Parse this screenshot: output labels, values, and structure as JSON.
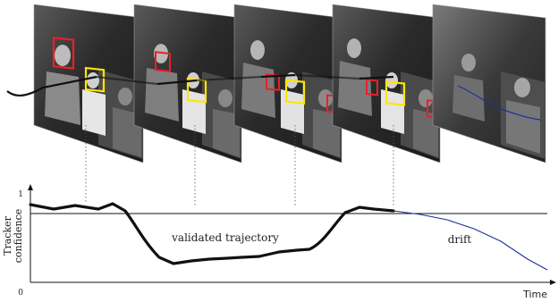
{
  "labels": {
    "y_axis_top": "Tracker",
    "y_axis_bottom": "confidence",
    "y_tick_max": "1",
    "y_tick_min": "0",
    "x_axis": "Time",
    "validated": "validated trajectory",
    "drift": "drift"
  },
  "frames": [
    {
      "id": "frame-1",
      "tone": "#2a2a2a"
    },
    {
      "id": "frame-2",
      "tone": "#2f2f2f"
    },
    {
      "id": "frame-3",
      "tone": "#2c2c2c"
    },
    {
      "id": "frame-4",
      "tone": "#303030"
    },
    {
      "id": "frame-5",
      "tone": "#333333"
    }
  ],
  "colors": {
    "validated_box": "#ffe600",
    "detection_box": "#e8202a",
    "drift_line": "#1f2f9a",
    "trajectory_line": "#111111",
    "threshold_line": "#111111"
  },
  "icons": [
    "person-silhouette"
  ]
}
